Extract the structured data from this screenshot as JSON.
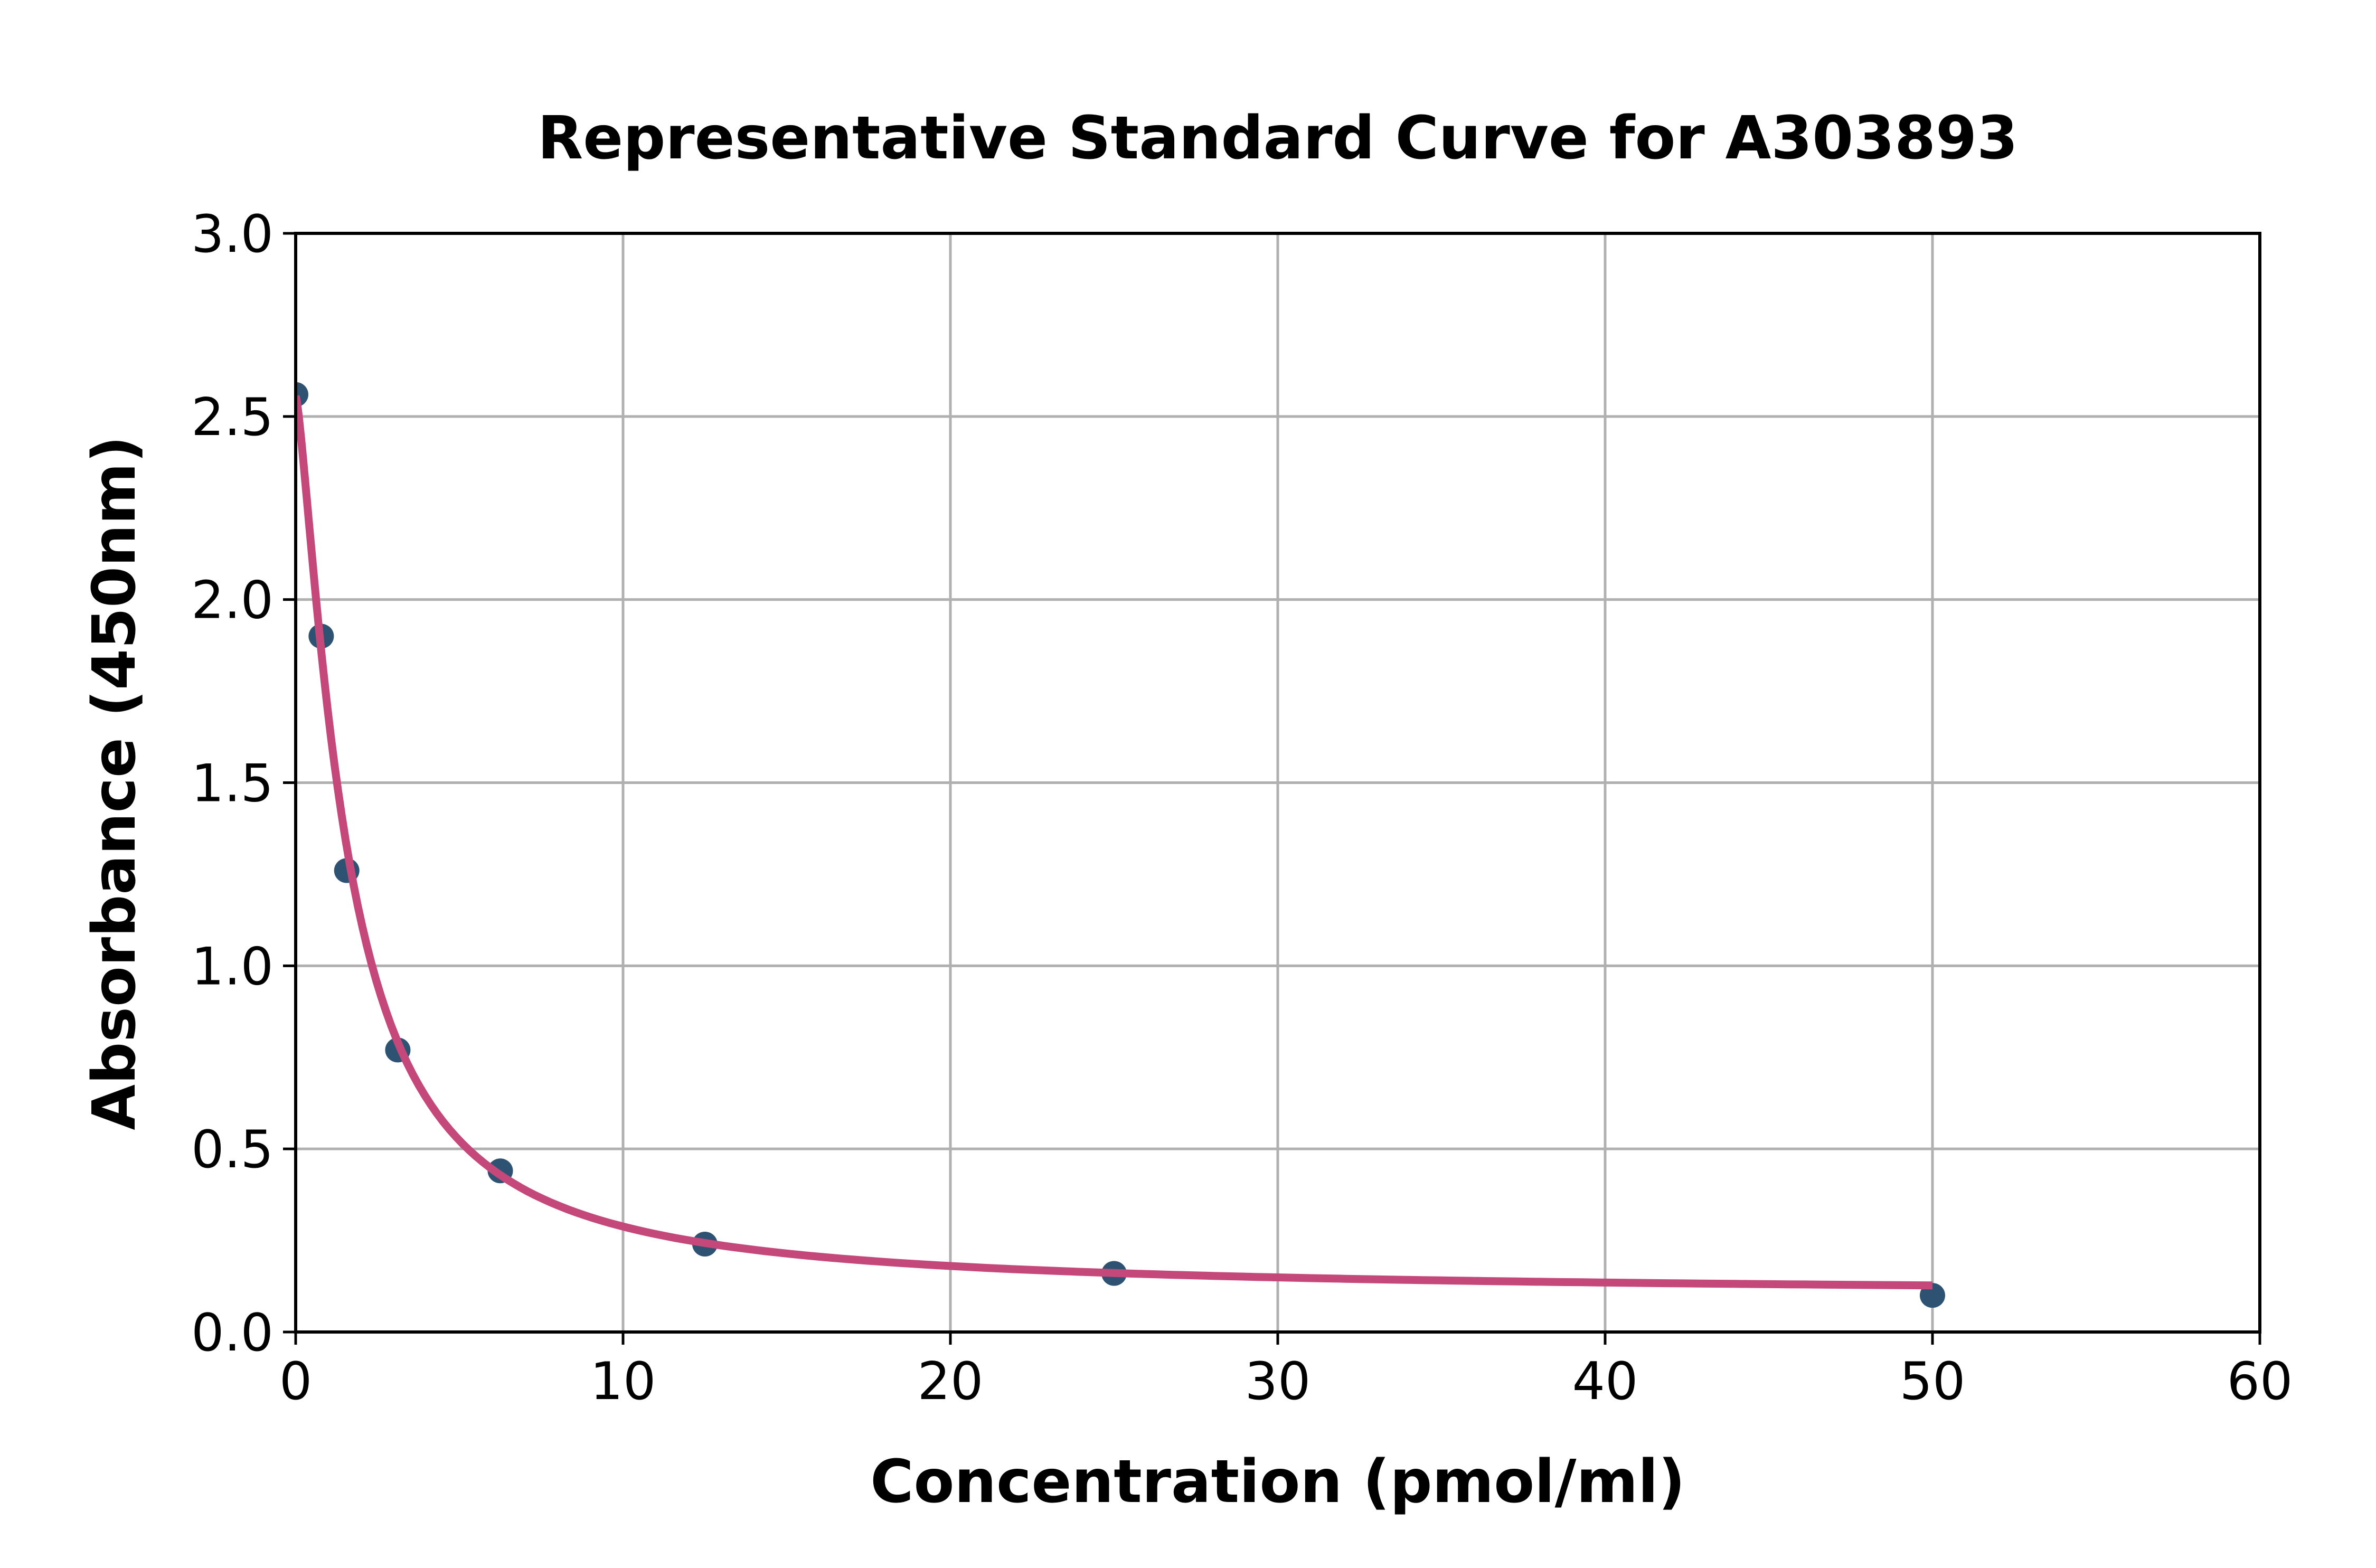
{
  "figure": {
    "title": "Representative Standard Curve for A303893"
  },
  "chart_data": {
    "type": "scatter",
    "title": "Representative Standard Curve for A303893",
    "xlabel": "Concentration (pmol/ml)",
    "ylabel": "Absorbance (450nm)",
    "xlim": [
      0,
      60
    ],
    "ylim": [
      0.0,
      3.0
    ],
    "x_ticks": [
      0,
      10,
      20,
      30,
      40,
      50,
      60
    ],
    "x_tick_labels": [
      "0",
      "10",
      "20",
      "30",
      "40",
      "50",
      "60"
    ],
    "y_ticks": [
      0.0,
      0.5,
      1.0,
      1.5,
      2.0,
      2.5,
      3.0
    ],
    "y_tick_labels": [
      "0.0",
      "0.5",
      "1.0",
      "1.5",
      "2.0",
      "2.5",
      "3.0"
    ],
    "grid": true,
    "legend_position": "none",
    "series": [
      {
        "name": "standard-points",
        "type": "scatter",
        "x": [
          0,
          0.78,
          1.56,
          3.12,
          6.25,
          12.5,
          25,
          50
        ],
        "y": [
          2.56,
          1.9,
          1.26,
          0.77,
          0.44,
          0.24,
          0.16,
          0.1
        ],
        "marker": "circle",
        "marker_color": "#2E5272"
      },
      {
        "name": "fit-curve",
        "type": "line",
        "fit_model": "4PL",
        "fit_params": {
          "a": 2.555,
          "b": 1.35,
          "c": 1.55,
          "d": 0.105
        },
        "x_range": [
          0,
          50
        ],
        "line_color": "#C4497A"
      }
    ],
    "colors": {
      "grid": "#B0B0B0",
      "axes": "#000000",
      "background": "#FFFFFF",
      "text": "#000000"
    }
  }
}
